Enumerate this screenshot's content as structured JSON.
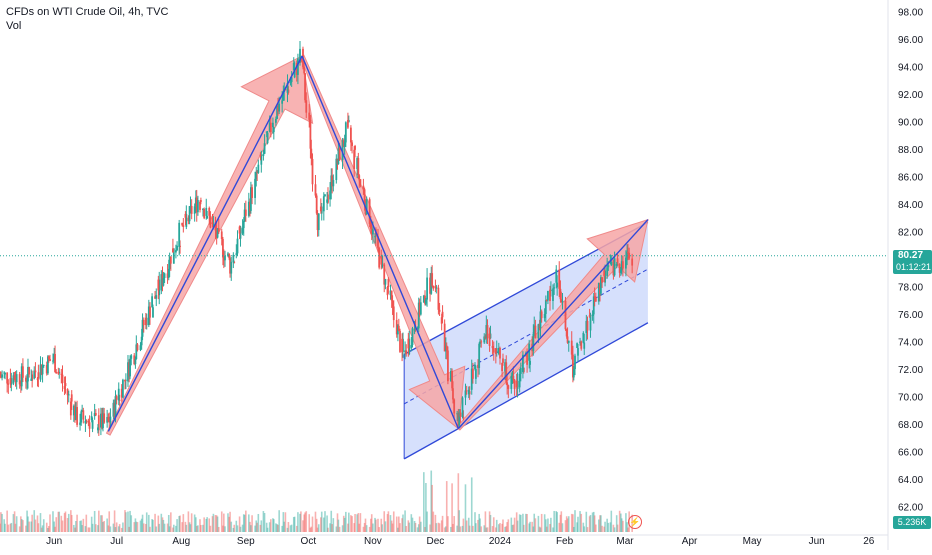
{
  "header": {
    "symbol": "CFDs on WTI Crude Oil, 4h, TVC",
    "indicator": "Vol"
  },
  "price_badge": {
    "price": "80.27",
    "countdown": "01:12:21"
  },
  "volume_badge": "5.236K",
  "colors": {
    "up": "#26a69a",
    "down": "#ef5350",
    "line": "#3049d8",
    "arrow_fill": "#f7a6a6",
    "channel_fill": "#c8d6fb",
    "price_line": "#26a69a"
  },
  "chart_data": {
    "type": "candlestick",
    "x_ticks": [
      "Jun",
      "Jul",
      "Aug",
      "Sep",
      "Oct",
      "Nov",
      "Dec",
      "2024",
      "Feb",
      "Mar",
      "Apr",
      "May",
      "Jun",
      "26"
    ],
    "y_ticks": [
      "98.00",
      "96.00",
      "94.00",
      "92.00",
      "90.00",
      "88.00",
      "86.00",
      "84.00",
      "82.00",
      "80.00",
      "78.00",
      "76.00",
      "74.00",
      "72.00",
      "70.00",
      "68.00",
      "66.00",
      "64.00",
      "62.00"
    ],
    "ylim": [
      61,
      99
    ],
    "last_price": 80.27,
    "path_points": [
      {
        "x": "2023-05-20",
        "y": 71.5
      },
      {
        "x": "2023-06-01",
        "y": 72.8
      },
      {
        "x": "2023-06-12",
        "y": 68.5
      },
      {
        "x": "2023-06-27",
        "y": 68.0
      },
      {
        "x": "2023-07-15",
        "y": 75.5
      },
      {
        "x": "2023-08-01",
        "y": 82.0
      },
      {
        "x": "2023-08-10",
        "y": 84.5
      },
      {
        "x": "2023-08-25",
        "y": 79.5
      },
      {
        "x": "2023-09-15",
        "y": 90.5
      },
      {
        "x": "2023-09-28",
        "y": 94.8
      },
      {
        "x": "2023-10-06",
        "y": 82.5
      },
      {
        "x": "2023-10-20",
        "y": 89.5
      },
      {
        "x": "2023-11-16",
        "y": 73.0
      },
      {
        "x": "2023-11-30",
        "y": 79.0
      },
      {
        "x": "2023-12-12",
        "y": 68.0
      },
      {
        "x": "2023-12-26",
        "y": 75.0
      },
      {
        "x": "2024-01-08",
        "y": 70.5
      },
      {
        "x": "2024-01-29",
        "y": 79.0
      },
      {
        "x": "2024-02-05",
        "y": 72.0
      },
      {
        "x": "2024-02-20",
        "y": 79.0
      },
      {
        "x": "2024-03-04",
        "y": 80.27
      }
    ],
    "trend_lines": [
      {
        "from": {
          "x": "2023-06-27",
          "y": 67.5
        },
        "to": {
          "x": "2023-09-28",
          "y": 94.8
        }
      },
      {
        "from": {
          "x": "2023-09-28",
          "y": 94.8
        },
        "to": {
          "x": "2023-12-12",
          "y": 67.7
        }
      },
      {
        "from": {
          "x": "2023-12-12",
          "y": 67.7
        },
        "to": {
          "x": "2024-03-12",
          "y": 82.9
        }
      }
    ],
    "channel": {
      "upper": [
        {
          "x": "2023-11-16",
          "y": 73.1
        },
        {
          "x": "2024-03-12",
          "y": 82.7
        }
      ],
      "lower": [
        {
          "x": "2023-11-16",
          "y": 65.5
        },
        {
          "x": "2024-03-12",
          "y": 75.4
        }
      ],
      "mid": [
        {
          "x": "2023-11-16",
          "y": 69.5
        },
        {
          "x": "2024-03-12",
          "y": 79.3
        }
      ]
    }
  }
}
